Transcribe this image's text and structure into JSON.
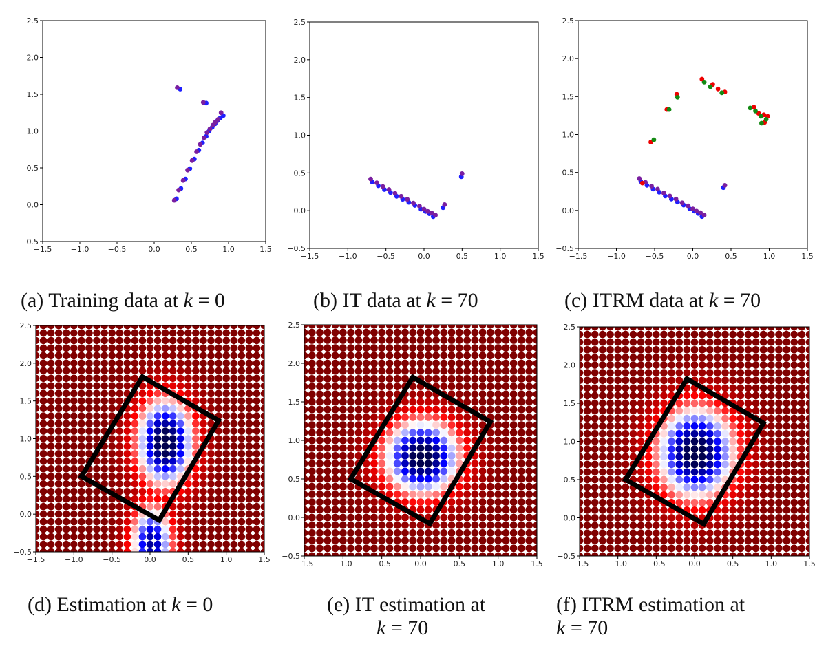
{
  "captions": {
    "a": {
      "prefix": "(a) Training data at ",
      "var": "k",
      "eq": " = 0"
    },
    "b": {
      "prefix": "(b) IT data at ",
      "var": "k",
      "eq": " = 70"
    },
    "c": {
      "prefix": "(c) ITRM data at ",
      "var": "k",
      "eq": " = 70"
    },
    "d": {
      "prefix": "(d) Estimation at ",
      "var": "k",
      "eq": " = 0"
    },
    "e": {
      "line1": "(e) IT estimation at",
      "var": "k",
      "eq": " = 70"
    },
    "f": {
      "line1": "(f) ITRM estimation at",
      "var": "k",
      "eq": " = 70"
    }
  },
  "chart_data": [
    {
      "id": "a",
      "type": "scatter",
      "xlim": [
        -1.5,
        1.5
      ],
      "ylim": [
        -0.5,
        2.5
      ],
      "xticks": [
        "-1.5",
        "-1.0",
        "-0.5",
        "0.0",
        "0.5",
        "1.0",
        "1.5"
      ],
      "yticks": [
        "-0.5",
        "0.0",
        "0.5",
        "1.0",
        "1.5",
        "2.0",
        "2.5"
      ],
      "series": [
        {
          "color": "#1f1fff",
          "points": [
            [
              0.3,
              0.08
            ],
            [
              0.36,
              0.22
            ],
            [
              0.42,
              0.35
            ],
            [
              0.48,
              0.49
            ],
            [
              0.54,
              0.62
            ],
            [
              0.6,
              0.74
            ],
            [
              0.65,
              0.84
            ],
            [
              0.7,
              0.93
            ],
            [
              0.74,
              1.0
            ],
            [
              0.78,
              1.05
            ],
            [
              0.82,
              1.1
            ],
            [
              0.85,
              1.14
            ],
            [
              0.89,
              1.18
            ],
            [
              0.93,
              1.21
            ],
            [
              0.35,
              1.57
            ],
            [
              0.7,
              1.38
            ]
          ]
        },
        {
          "color": "#7a1fa0",
          "points": [
            [
              0.27,
              0.06
            ],
            [
              0.33,
              0.2
            ],
            [
              0.39,
              0.33
            ],
            [
              0.45,
              0.47
            ],
            [
              0.51,
              0.6
            ],
            [
              0.57,
              0.72
            ],
            [
              0.62,
              0.82
            ],
            [
              0.67,
              0.91
            ],
            [
              0.71,
              0.98
            ],
            [
              0.75,
              1.03
            ],
            [
              0.79,
              1.08
            ],
            [
              0.82,
              1.12
            ],
            [
              0.86,
              1.16
            ],
            [
              0.9,
              1.25
            ],
            [
              0.31,
              1.59
            ],
            [
              0.66,
              1.39
            ]
          ]
        }
      ]
    },
    {
      "id": "b",
      "type": "scatter",
      "xlim": [
        -1.5,
        1.5
      ],
      "ylim": [
        -0.5,
        2.5
      ],
      "xticks": [
        "-1.5",
        "-1.0",
        "-0.5",
        "0.0",
        "0.5",
        "1.0",
        "1.5"
      ],
      "yticks": [
        "-0.5",
        "0.0",
        "0.5",
        "1.0",
        "1.5",
        "2.0",
        "2.5"
      ],
      "series": [
        {
          "color": "#1f1fff",
          "points": [
            [
              -0.68,
              0.38
            ],
            [
              -0.6,
              0.33
            ],
            [
              -0.52,
              0.28
            ],
            [
              -0.44,
              0.24
            ],
            [
              -0.36,
              0.19
            ],
            [
              -0.28,
              0.15
            ],
            [
              -0.2,
              0.11
            ],
            [
              -0.12,
              0.07
            ],
            [
              -0.04,
              0.02
            ],
            [
              0.02,
              -0.01
            ],
            [
              0.07,
              -0.04
            ],
            [
              0.12,
              -0.08
            ],
            [
              0.25,
              0.04
            ],
            [
              0.49,
              0.45
            ]
          ]
        },
        {
          "color": "#7a1fa0",
          "points": [
            [
              -0.7,
              0.42
            ],
            [
              -0.62,
              0.37
            ],
            [
              -0.54,
              0.32
            ],
            [
              -0.46,
              0.28
            ],
            [
              -0.38,
              0.23
            ],
            [
              -0.3,
              0.19
            ],
            [
              -0.22,
              0.15
            ],
            [
              -0.14,
              0.1
            ],
            [
              -0.06,
              0.06
            ],
            [
              0.0,
              0.02
            ],
            [
              0.05,
              -0.01
            ],
            [
              0.1,
              -0.03
            ],
            [
              0.15,
              -0.06
            ],
            [
              0.27,
              0.08
            ],
            [
              0.5,
              0.49
            ]
          ]
        }
      ]
    },
    {
      "id": "c",
      "type": "scatter",
      "xlim": [
        -1.5,
        1.5
      ],
      "ylim": [
        -0.5,
        2.5
      ],
      "xticks": [
        "-1.5",
        "-1.0",
        "-0.5",
        "0.0",
        "0.5",
        "1.0",
        "1.5"
      ],
      "yticks": [
        "-0.5",
        "0.0",
        "0.5",
        "1.0",
        "1.5",
        "2.0",
        "2.5"
      ],
      "series": [
        {
          "color": "#1f1fff",
          "points": [
            [
              -0.68,
              0.38
            ],
            [
              -0.6,
              0.33
            ],
            [
              -0.52,
              0.28
            ],
            [
              -0.44,
              0.24
            ],
            [
              -0.36,
              0.19
            ],
            [
              -0.28,
              0.15
            ],
            [
              -0.2,
              0.11
            ],
            [
              -0.12,
              0.07
            ],
            [
              -0.04,
              0.02
            ],
            [
              0.02,
              -0.01
            ],
            [
              0.07,
              -0.04
            ],
            [
              0.12,
              -0.08
            ],
            [
              0.4,
              0.3
            ]
          ]
        },
        {
          "color": "#7a1fa0",
          "points": [
            [
              -0.7,
              0.42
            ],
            [
              -0.62,
              0.37
            ],
            [
              -0.54,
              0.32
            ],
            [
              -0.46,
              0.28
            ],
            [
              -0.38,
              0.23
            ],
            [
              -0.3,
              0.19
            ],
            [
              -0.22,
              0.15
            ],
            [
              -0.14,
              0.1
            ],
            [
              -0.06,
              0.06
            ],
            [
              0.0,
              0.02
            ],
            [
              0.05,
              -0.01
            ],
            [
              0.1,
              -0.03
            ],
            [
              0.15,
              -0.06
            ],
            [
              0.42,
              0.33
            ]
          ]
        },
        {
          "color": "#ee0000",
          "points": [
            [
              -0.66,
              0.36
            ],
            [
              -0.55,
              0.9
            ],
            [
              -0.34,
              1.33
            ],
            [
              -0.21,
              1.53
            ],
            [
              0.12,
              1.73
            ],
            [
              0.26,
              1.66
            ],
            [
              0.33,
              1.6
            ],
            [
              0.42,
              1.56
            ],
            [
              0.8,
              1.36
            ],
            [
              0.86,
              1.28
            ],
            [
              0.93,
              1.26
            ],
            [
              0.98,
              1.24
            ],
            [
              0.94,
              1.16
            ]
          ]
        },
        {
          "color": "#138a13",
          "points": [
            [
              -0.51,
              0.93
            ],
            [
              -0.31,
              1.33
            ],
            [
              -0.2,
              1.49
            ],
            [
              0.15,
              1.69
            ],
            [
              0.23,
              1.63
            ],
            [
              0.38,
              1.55
            ],
            [
              0.75,
              1.35
            ],
            [
              0.82,
              1.31
            ],
            [
              0.89,
              1.24
            ],
            [
              0.96,
              1.2
            ],
            [
              0.9,
              1.15
            ]
          ]
        }
      ]
    },
    {
      "id": "d",
      "type": "heatmap",
      "grid_step": 0.1,
      "xlim": [
        -1.5,
        1.5
      ],
      "ylim": [
        -0.5,
        2.5
      ],
      "xticks": [
        "-1.5",
        "-1.0",
        "-0.5",
        "0.0",
        "0.5",
        "1.0",
        "1.5"
      ],
      "yticks": [
        "-0.5",
        "0.0",
        "0.5",
        "1.0",
        "1.5",
        "2.0",
        "2.5"
      ],
      "colormap": "seismic",
      "field": {
        "center": [
          0.2,
          0.95
        ],
        "sx": 0.38,
        "sy": 0.6,
        "tail": true
      },
      "rectangle": [
        [
          -0.1,
          1.82
        ],
        [
          0.9,
          1.24
        ],
        [
          0.12,
          -0.08
        ],
        [
          -0.9,
          0.5
        ]
      ]
    },
    {
      "id": "e",
      "type": "heatmap",
      "grid_step": 0.1,
      "xlim": [
        -1.5,
        1.5
      ],
      "ylim": [
        -0.5,
        2.5
      ],
      "xticks": [
        "-1.5",
        "-1.0",
        "-0.5",
        "0.0",
        "0.5",
        "1.0",
        "1.5"
      ],
      "yticks": [
        "-0.5",
        "0.0",
        "0.5",
        "1.0",
        "1.5",
        "2.0",
        "2.5"
      ],
      "colormap": "seismic",
      "field": {
        "center": [
          0.02,
          0.78
        ],
        "sx": 0.5,
        "sy": 0.5,
        "tail": false
      },
      "rectangle": [
        [
          -0.1,
          1.82
        ],
        [
          0.9,
          1.24
        ],
        [
          0.12,
          -0.08
        ],
        [
          -0.9,
          0.5
        ]
      ]
    },
    {
      "id": "f",
      "type": "heatmap",
      "grid_step": 0.1,
      "xlim": [
        -1.5,
        1.5
      ],
      "ylim": [
        -0.5,
        2.5
      ],
      "xticks": [
        "-1.5",
        "-1.0",
        "-0.5",
        "0.0",
        "0.5",
        "1.0",
        "1.5"
      ],
      "yticks": [
        "-0.5",
        "0.0",
        "0.5",
        "1.0",
        "1.5",
        "2.0",
        "2.5"
      ],
      "colormap": "seismic",
      "field": {
        "center": [
          0.02,
          0.85
        ],
        "sx": 0.52,
        "sy": 0.62,
        "tail": false
      },
      "rectangle": [
        [
          -0.1,
          1.82
        ],
        [
          0.9,
          1.24
        ],
        [
          0.12,
          -0.08
        ],
        [
          -0.9,
          0.5
        ]
      ]
    }
  ]
}
